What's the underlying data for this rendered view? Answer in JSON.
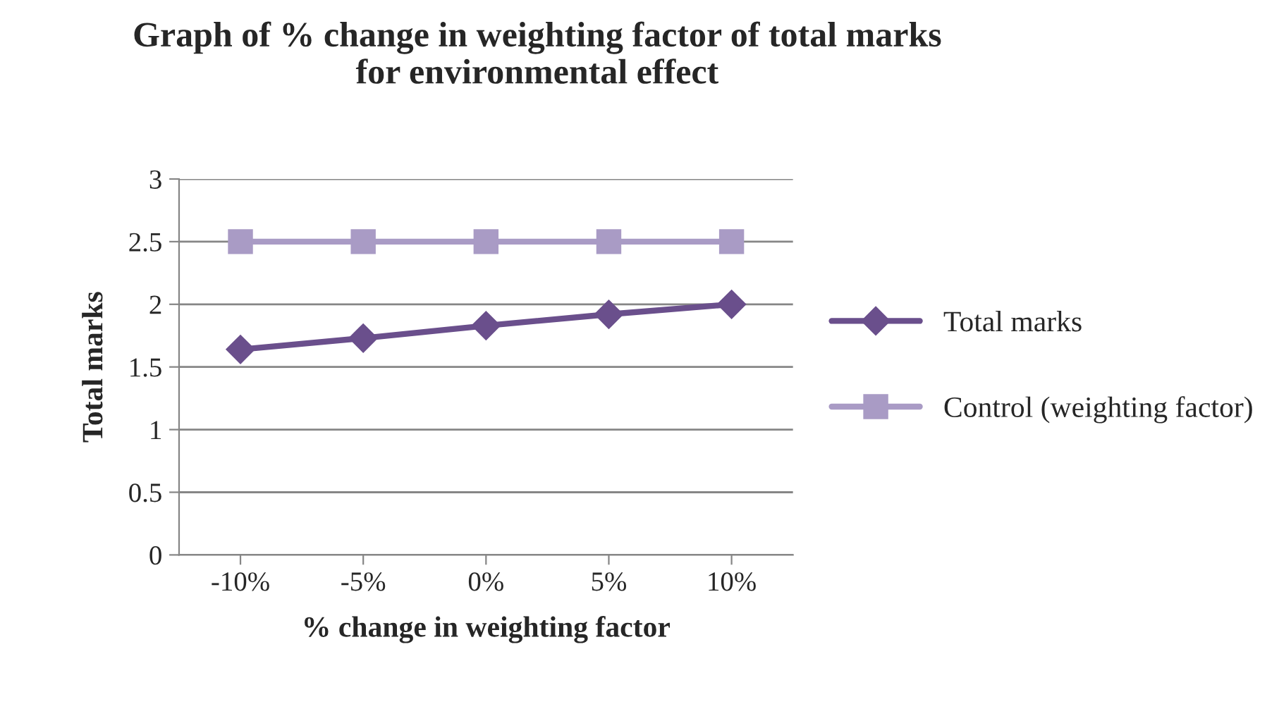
{
  "chart_data": {
    "type": "line",
    "title": "Graph of % change in weighting factor of total marks\nfor environmental effect",
    "xlabel": "% change in weighting factor",
    "ylabel": "Total marks",
    "categories": [
      "-10%",
      "-5%",
      "0%",
      "5%",
      "10%"
    ],
    "series": [
      {
        "name": "Total marks",
        "color": "#6a4f8c",
        "marker": "diamond",
        "values": [
          1.64,
          1.73,
          1.83,
          1.92,
          2.0
        ]
      },
      {
        "name": "Control (weighting factor)",
        "color": "#a99bc5",
        "marker": "square",
        "values": [
          2.5,
          2.5,
          2.5,
          2.5,
          2.5
        ]
      }
    ],
    "ylim": [
      0,
      3
    ],
    "yticks": [
      0,
      0.5,
      1,
      1.5,
      2,
      2.5,
      3
    ],
    "grid": "y",
    "legend": "right",
    "line_style": "solid"
  }
}
